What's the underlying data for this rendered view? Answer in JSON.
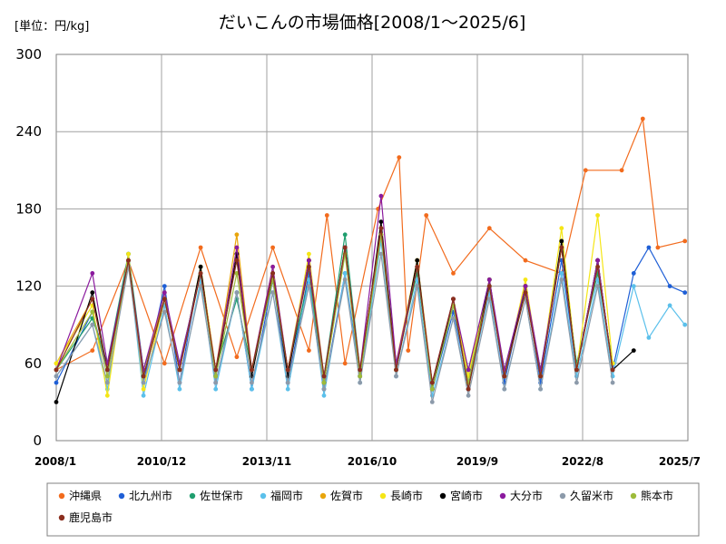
{
  "chart_data": {
    "type": "line",
    "title": "だいこんの市場価格[2008/1～2025/6]",
    "unit_label": "[単位：円/kg]",
    "x_tick_labels": [
      "2008/1",
      "2010/12",
      "2013/11",
      "2016/10",
      "2019/9",
      "2022/8",
      "2025/7"
    ],
    "y_tick_labels": [
      "0",
      "60",
      "120",
      "180",
      "240",
      "300"
    ],
    "ylim": [
      0,
      300
    ],
    "grid": true,
    "legend_position": "bottom",
    "x_range_months": [
      "2008-01",
      "2025-07"
    ],
    "series": [
      {
        "name": "沖縄県",
        "color": "#f26b1d",
        "x": [
          "2008-01",
          "2009-01",
          "2010-01",
          "2011-01",
          "2012-01",
          "2013-01",
          "2014-01",
          "2015-01",
          "2015-07",
          "2016-01",
          "2016-12",
          "2017-07",
          "2017-10",
          "2018-04",
          "2019-01",
          "2020-01",
          "2021-01",
          "2022-01",
          "2022-09",
          "2023-09",
          "2024-04",
          "2024-09",
          "2025-06"
        ],
        "values": [
          55,
          70,
          140,
          60,
          150,
          65,
          150,
          70,
          175,
          60,
          180,
          220,
          70,
          175,
          130,
          165,
          140,
          130,
          210,
          210,
          250,
          150,
          155
        ]
      },
      {
        "name": "北九州市",
        "color": "#1f5fd6",
        "x": [
          "2008-01",
          "2009-01",
          "2009-06",
          "2010-01",
          "2010-06",
          "2011-01",
          "2011-06",
          "2012-01",
          "2012-06",
          "2013-01",
          "2013-06",
          "2014-01",
          "2014-06",
          "2015-01",
          "2015-06",
          "2016-01",
          "2016-06",
          "2017-01",
          "2017-06",
          "2018-01",
          "2018-06",
          "2019-01",
          "2019-06",
          "2020-01",
          "2020-06",
          "2021-01",
          "2021-06",
          "2022-01",
          "2022-06",
          "2023-01",
          "2023-06",
          "2024-01",
          "2024-06",
          "2025-01",
          "2025-06"
        ],
        "values": [
          45,
          100,
          55,
          145,
          45,
          120,
          45,
          135,
          45,
          115,
          40,
          125,
          45,
          130,
          40,
          130,
          50,
          160,
          55,
          135,
          40,
          100,
          45,
          125,
          45,
          120,
          45,
          140,
          55,
          140,
          55,
          130,
          150,
          120,
          115
        ]
      },
      {
        "name": "佐世保市",
        "color": "#1f9e6e",
        "x": [
          "2008-01",
          "2009-01",
          "2009-06",
          "2010-01",
          "2010-06",
          "2011-01",
          "2011-06",
          "2012-01",
          "2012-06",
          "2013-01",
          "2013-06",
          "2014-01",
          "2014-06",
          "2015-01",
          "2015-06",
          "2016-01",
          "2016-06",
          "2017-01",
          "2017-06",
          "2018-01",
          "2018-06",
          "2019-01",
          "2019-06",
          "2020-01",
          "2020-06",
          "2021-01",
          "2021-06",
          "2022-01",
          "2022-06",
          "2023-01",
          "2023-06"
        ],
        "values": [
          55,
          95,
          60,
          145,
          55,
          110,
          60,
          130,
          55,
          110,
          55,
          125,
          55,
          125,
          50,
          160,
          55,
          165,
          60,
          130,
          45,
          105,
          55,
          120,
          55,
          115,
          55,
          150,
          60,
          130,
          60
        ]
      },
      {
        "name": "福岡市",
        "color": "#5bc0eb",
        "x": [
          "2008-01",
          "2009-01",
          "2009-06",
          "2010-01",
          "2010-06",
          "2011-01",
          "2011-06",
          "2012-01",
          "2012-06",
          "2013-01",
          "2013-06",
          "2014-01",
          "2014-06",
          "2015-01",
          "2015-06",
          "2016-01",
          "2016-06",
          "2017-01",
          "2017-06",
          "2018-01",
          "2018-06",
          "2019-01",
          "2019-06",
          "2020-01",
          "2020-06",
          "2021-01",
          "2021-06",
          "2022-01",
          "2022-06",
          "2023-01",
          "2023-06",
          "2024-01",
          "2024-06",
          "2025-01",
          "2025-06"
        ],
        "values": [
          50,
          90,
          40,
          140,
          35,
          105,
          40,
          125,
          40,
          115,
          40,
          115,
          40,
          125,
          35,
          130,
          45,
          155,
          50,
          125,
          35,
          95,
          40,
          115,
          40,
          110,
          40,
          130,
          50,
          125,
          50,
          120,
          80,
          105,
          90
        ]
      },
      {
        "name": "佐賀市",
        "color": "#e8a50c",
        "x": [
          "2008-01",
          "2009-01",
          "2009-06",
          "2010-01",
          "2010-06",
          "2011-01",
          "2011-06",
          "2012-01",
          "2012-06",
          "2013-01",
          "2013-06",
          "2014-01",
          "2014-06",
          "2015-01",
          "2015-06",
          "2016-01",
          "2016-06",
          "2017-01",
          "2017-06",
          "2018-01",
          "2018-06",
          "2019-01",
          "2019-06",
          "2020-01",
          "2020-06",
          "2021-01",
          "2021-06",
          "2022-01",
          "2022-06",
          "2023-01",
          "2023-06"
        ],
        "values": [
          60,
          110,
          55,
          140,
          50,
          115,
          55,
          135,
          55,
          160,
          55,
          130,
          55,
          140,
          45,
          150,
          55,
          160,
          60,
          140,
          45,
          110,
          50,
          125,
          50,
          120,
          50,
          150,
          55,
          140,
          55
        ]
      },
      {
        "name": "長崎市",
        "color": "#f5e616",
        "x": [
          "2008-01",
          "2009-01",
          "2009-06",
          "2010-01",
          "2010-06",
          "2011-01",
          "2011-06",
          "2012-01",
          "2012-06",
          "2013-01",
          "2013-06",
          "2014-01",
          "2014-06",
          "2015-01",
          "2015-06",
          "2016-01",
          "2016-06",
          "2017-01",
          "2017-06",
          "2018-01",
          "2018-06",
          "2019-01",
          "2019-06",
          "2020-01",
          "2020-06",
          "2021-01",
          "2021-06",
          "2022-01",
          "2022-06",
          "2023-01",
          "2023-06"
        ],
        "values": [
          60,
          105,
          35,
          145,
          40,
          110,
          55,
          135,
          55,
          150,
          55,
          135,
          55,
          145,
          50,
          150,
          55,
          165,
          55,
          140,
          40,
          110,
          50,
          125,
          50,
          125,
          50,
          165,
          55,
          175,
          60
        ]
      },
      {
        "name": "宮崎市",
        "color": "#000000",
        "x": [
          "2008-01",
          "2009-01",
          "2009-06",
          "2010-01",
          "2010-06",
          "2011-01",
          "2011-06",
          "2012-01",
          "2012-06",
          "2013-01",
          "2013-06",
          "2014-01",
          "2014-06",
          "2015-01",
          "2015-06",
          "2016-01",
          "2016-06",
          "2017-01",
          "2017-06",
          "2018-01",
          "2018-06",
          "2019-01",
          "2019-06",
          "2020-01",
          "2020-06",
          "2021-01",
          "2021-06",
          "2022-01",
          "2022-06",
          "2023-01",
          "2023-06",
          "2024-01"
        ],
        "values": [
          30,
          115,
          55,
          140,
          50,
          110,
          55,
          135,
          50,
          145,
          50,
          130,
          50,
          140,
          45,
          150,
          50,
          170,
          55,
          140,
          40,
          110,
          40,
          125,
          50,
          120,
          50,
          155,
          55,
          140,
          55,
          70
        ]
      },
      {
        "name": "大分市",
        "color": "#8b1a9e",
        "x": [
          "2008-01",
          "2009-01",
          "2009-06",
          "2010-01",
          "2010-06",
          "2011-01",
          "2011-06",
          "2012-01",
          "2012-06",
          "2013-01",
          "2013-06",
          "2014-01",
          "2014-06",
          "2015-01",
          "2015-06",
          "2016-01",
          "2016-06",
          "2017-01",
          "2017-06",
          "2018-01",
          "2018-06",
          "2019-01",
          "2019-06",
          "2020-01",
          "2020-06",
          "2021-01",
          "2021-06",
          "2022-01",
          "2022-06",
          "2023-01",
          "2023-06"
        ],
        "values": [
          55,
          130,
          60,
          140,
          55,
          115,
          60,
          130,
          55,
          150,
          55,
          135,
          55,
          140,
          50,
          150,
          55,
          190,
          60,
          135,
          45,
          110,
          55,
          125,
          55,
          120,
          55,
          150,
          55,
          140,
          55
        ]
      },
      {
        "name": "久留米市",
        "color": "#8c9aaa",
        "x": [
          "2008-01",
          "2009-01",
          "2009-06",
          "2010-01",
          "2010-06",
          "2011-01",
          "2011-06",
          "2012-01",
          "2012-06",
          "2013-01",
          "2013-06",
          "2014-01",
          "2014-06",
          "2015-01",
          "2015-06",
          "2016-01",
          "2016-06",
          "2017-01",
          "2017-06",
          "2018-01",
          "2018-06",
          "2019-01",
          "2019-06",
          "2020-01",
          "2020-06",
          "2021-01",
          "2021-06",
          "2022-01",
          "2022-06",
          "2023-01",
          "2023-06"
        ],
        "values": [
          50,
          90,
          45,
          135,
          45,
          100,
          45,
          120,
          45,
          115,
          45,
          115,
          45,
          120,
          40,
          125,
          45,
          145,
          50,
          120,
          30,
          95,
          35,
          110,
          40,
          110,
          40,
          125,
          45,
          120,
          45
        ]
      },
      {
        "name": "熊本市",
        "color": "#9dbb3a",
        "x": [
          "2008-01",
          "2009-01",
          "2009-06",
          "2010-01",
          "2010-06",
          "2011-01",
          "2011-06",
          "2012-01",
          "2012-06",
          "2013-01",
          "2013-06",
          "2014-01",
          "2014-06",
          "2015-01",
          "2015-06",
          "2016-01",
          "2016-06",
          "2017-01",
          "2017-06",
          "2018-01",
          "2018-06",
          "2019-01",
          "2019-06",
          "2020-01",
          "2020-06",
          "2021-01",
          "2021-06",
          "2022-01",
          "2022-06",
          "2023-01",
          "2023-06"
        ],
        "values": [
          55,
          100,
          50,
          140,
          50,
          110,
          55,
          130,
          50,
          130,
          55,
          125,
          55,
          135,
          45,
          145,
          50,
          160,
          55,
          135,
          40,
          105,
          45,
          120,
          50,
          115,
          50,
          150,
          55,
          135,
          55
        ]
      },
      {
        "name": "鹿児島市",
        "color": "#8b2e1e",
        "x": [
          "2008-01",
          "2009-01",
          "2009-06",
          "2010-01",
          "2010-06",
          "2011-01",
          "2011-06",
          "2012-01",
          "2012-06",
          "2013-01",
          "2013-06",
          "2014-01",
          "2014-06",
          "2015-01",
          "2015-06",
          "2016-01",
          "2016-06",
          "2017-01",
          "2017-06",
          "2018-01",
          "2018-06",
          "2019-01",
          "2019-06",
          "2020-01",
          "2020-06",
          "2021-01",
          "2021-06",
          "2022-01",
          "2022-06",
          "2023-01",
          "2023-06"
        ],
        "values": [
          55,
          110,
          55,
          140,
          50,
          110,
          55,
          130,
          55,
          140,
          55,
          130,
          55,
          135,
          50,
          150,
          55,
          165,
          55,
          135,
          45,
          110,
          40,
          120,
          50,
          115,
          50,
          150,
          55,
          135,
          55
        ]
      }
    ]
  }
}
